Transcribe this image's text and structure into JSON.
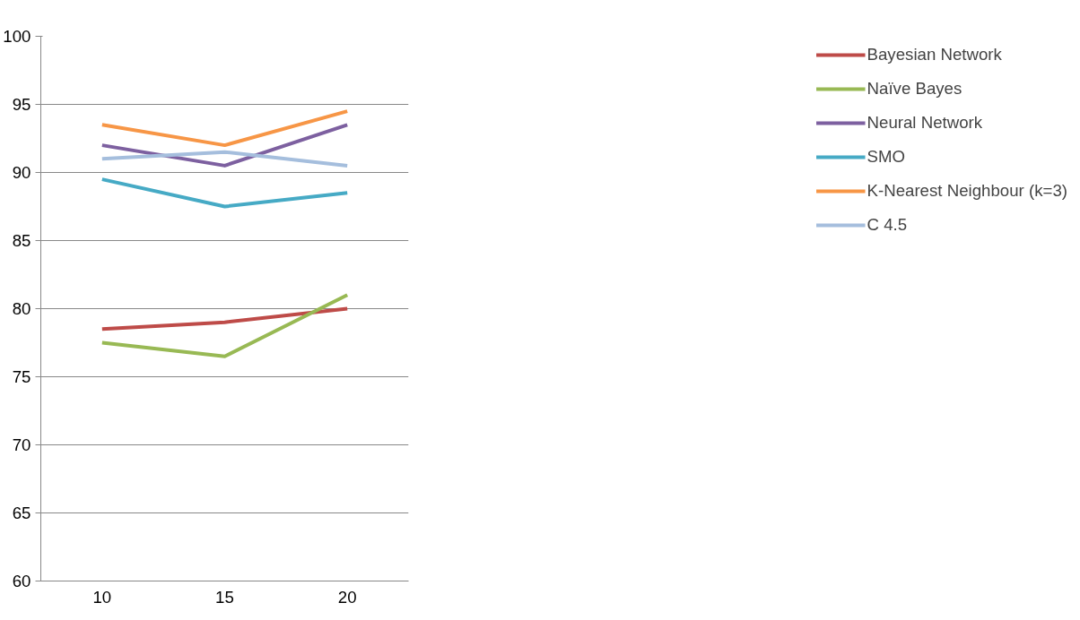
{
  "chart_data": {
    "type": "line",
    "categories": [
      "10",
      "15",
      "20"
    ],
    "series": [
      {
        "name": "Bayesian Network",
        "color": "#be4b48",
        "values": [
          78.5,
          79,
          80
        ]
      },
      {
        "name": "Naïve Bayes",
        "color": "#98b954",
        "values": [
          77.5,
          76.5,
          81
        ]
      },
      {
        "name": "Neural Network",
        "color": "#7d60a0",
        "values": [
          92,
          90.5,
          93.5
        ]
      },
      {
        "name": "SMO",
        "color": "#46aac5",
        "values": [
          89.5,
          87.5,
          88.5
        ]
      },
      {
        "name": "K-Nearest Neighbour (k=3)",
        "color": "#f79646",
        "values": [
          93.5,
          92,
          94.5
        ]
      },
      {
        "name": "C 4.5",
        "color": "#a5bedd",
        "values": [
          91,
          91.5,
          90.5
        ]
      }
    ],
    "ylim": [
      60,
      100
    ],
    "yticks": [
      60,
      65,
      70,
      75,
      80,
      85,
      90,
      95,
      100
    ],
    "grid": "y",
    "legend": "right",
    "marker": "none",
    "line_style": "solid"
  }
}
